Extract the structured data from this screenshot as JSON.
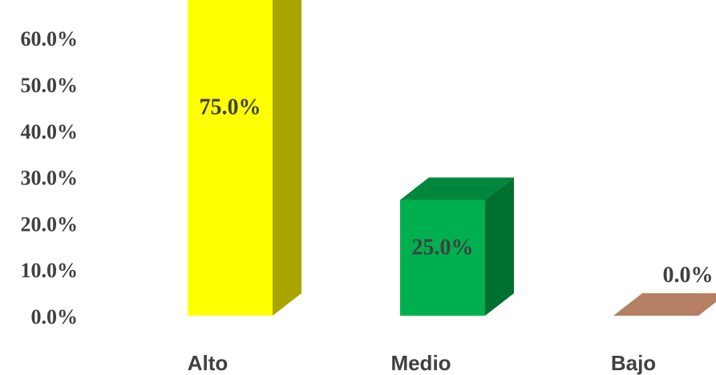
{
  "chart_data": {
    "type": "bar",
    "style": "3d-columns",
    "categories": [
      "Alto",
      "Medio",
      "Bajo"
    ],
    "values": [
      75.0,
      25.0,
      0.0
    ],
    "data_labels": [
      "75.0%",
      "25.0%",
      "0.0%"
    ],
    "y_ticks": [
      "0.0%",
      "10.0%",
      "20.0%",
      "30.0%",
      "40.0%",
      "50.0%",
      "60.0%"
    ],
    "y_tick_values": [
      0,
      10,
      20,
      30,
      40,
      50,
      60
    ],
    "grid": false,
    "legend": "none",
    "colors": [
      {
        "front": "#FFFF00",
        "top": "#C7C400",
        "side": "#A9A500"
      },
      {
        "front": "#00B050",
        "top": "#00873D",
        "side": "#00702F"
      },
      {
        "front": "#C0967A",
        "top": "#B47F62",
        "side": "#9C6A50"
      }
    ],
    "text_color": "#404040"
  }
}
